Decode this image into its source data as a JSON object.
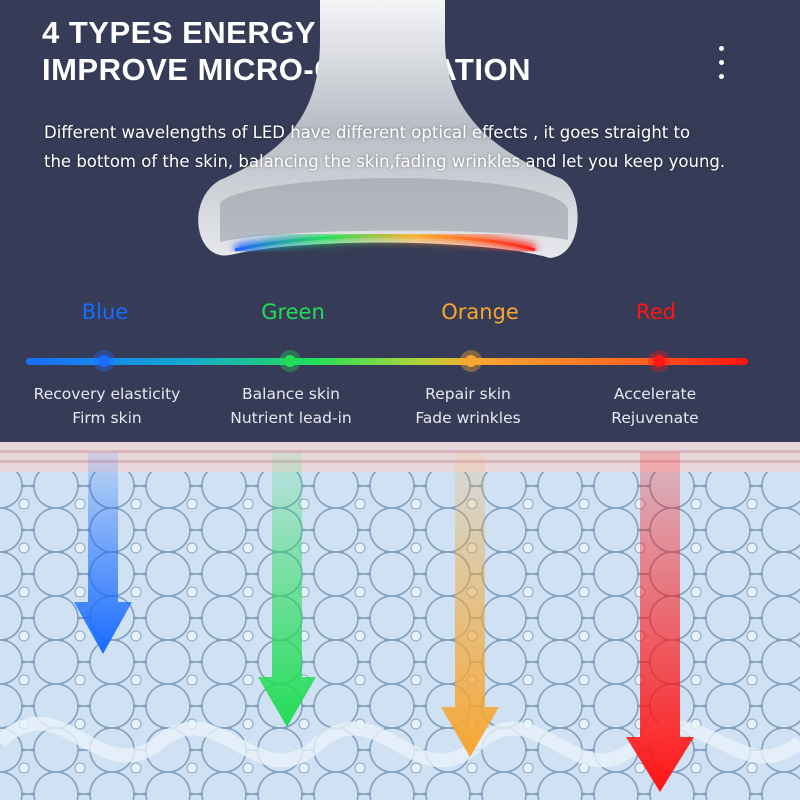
{
  "header": {
    "title_line1": "4 TYPES ENERGY LEDS",
    "title_line2": "IMPROVE MICRO-CIRCULATION",
    "menu_icon": "vertical-ellipsis-icon"
  },
  "description": {
    "line1": "Different wavelengths of LED have different optical effects , it  goes straight to",
    "line2": "the bottom of the skin, balancing the skin,fading wrinkles and let you keep young."
  },
  "leds": [
    {
      "name": "Blue",
      "color": "#1a6cff",
      "benefit1": "Recovery elasticity",
      "benefit2": "Firm skin"
    },
    {
      "name": "Green",
      "color": "#22dd55",
      "benefit1": "Balance skin",
      "benefit2": "Nutrient lead-in"
    },
    {
      "name": "Orange",
      "color": "#f7a632",
      "benefit1": "Repair skin",
      "benefit2": "Fade wrinkles"
    },
    {
      "name": "Red",
      "color": "#ff1515",
      "benefit1": "Accelerate",
      "benefit2": "Rejuvenate"
    }
  ],
  "colors": {
    "background": "#363c57",
    "skin": "#b9d3ea"
  }
}
